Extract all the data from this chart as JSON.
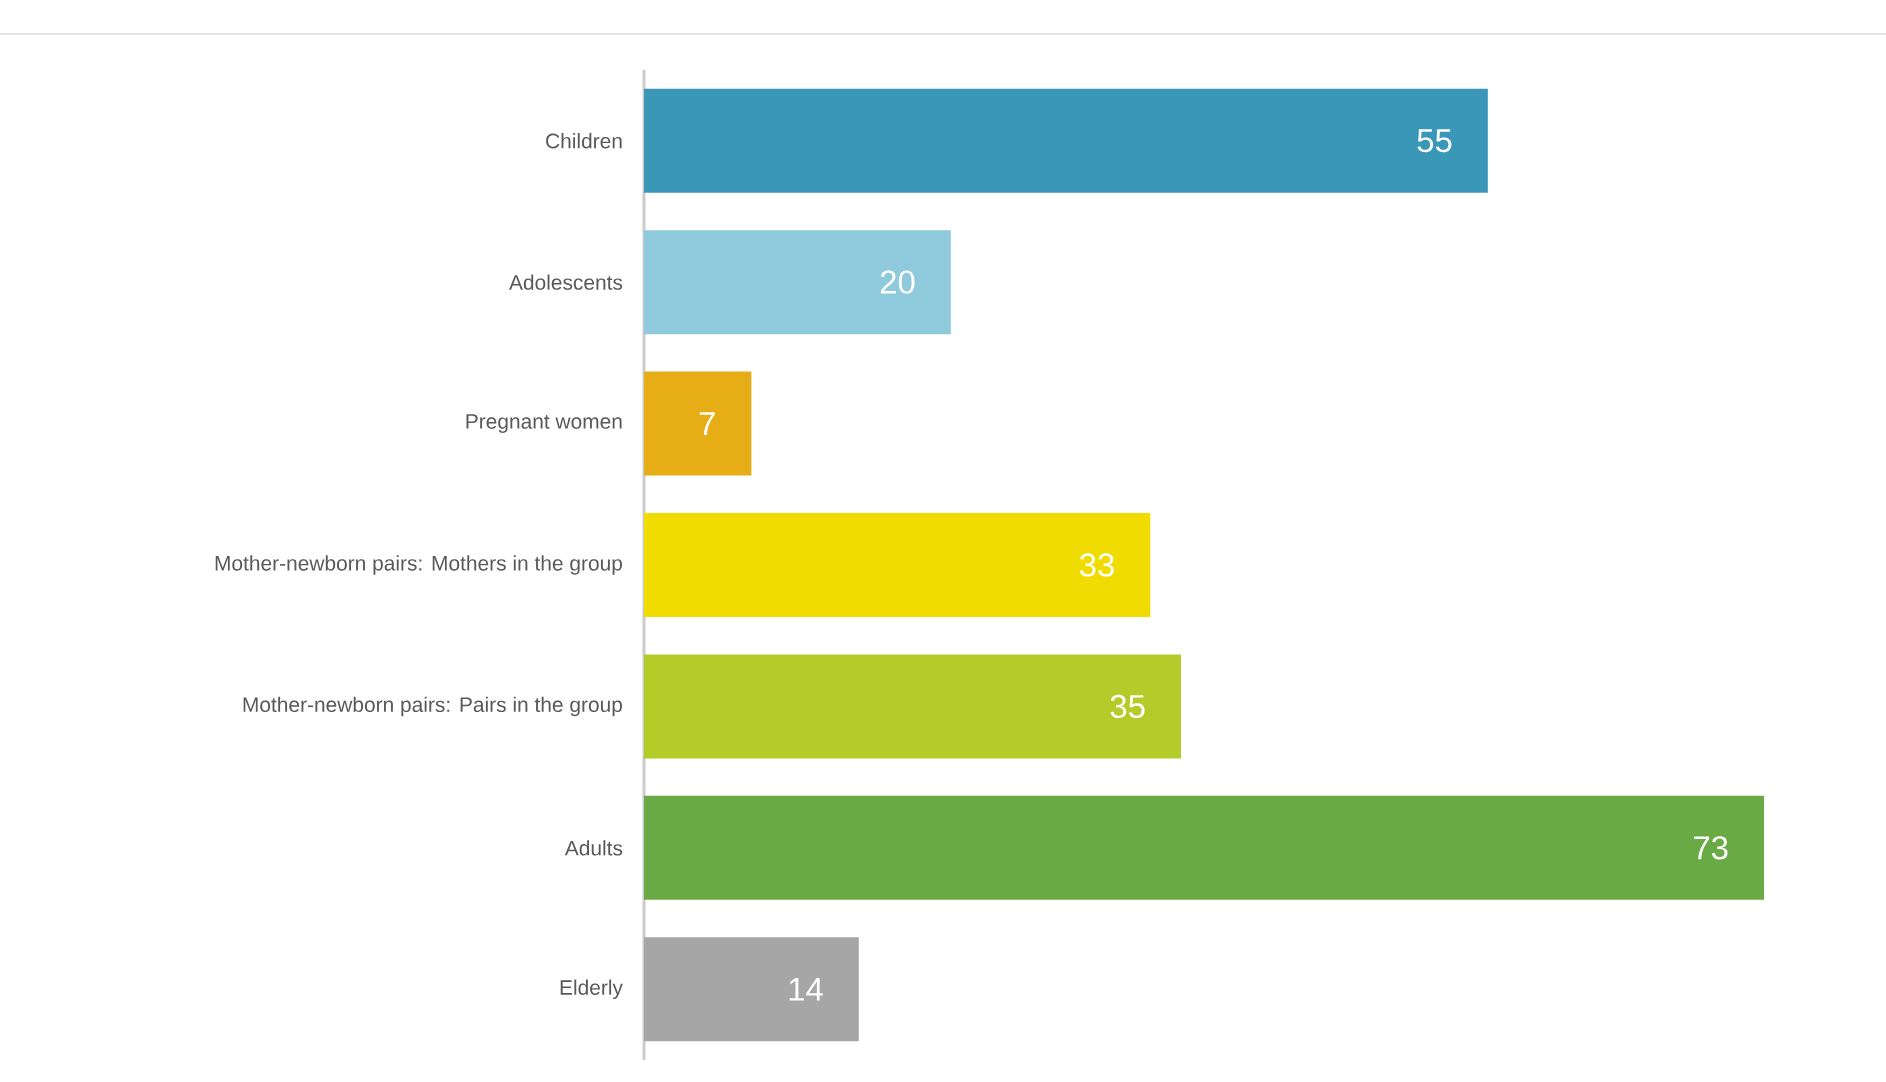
{
  "chart_data": {
    "type": "bar",
    "orientation": "horizontal",
    "categories": [
      "Children",
      "Adolescents",
      "Pregnant women",
      "Mother-newborn pairs: Mothers in the group",
      "Mother-newborn pairs: Pairs in the group",
      "Adults",
      "Elderly"
    ],
    "values": [
      55,
      20,
      7,
      33,
      35,
      73,
      14
    ],
    "colors": [
      "#3a97b8",
      "#8ecadb",
      "#e6ad17",
      "#f0dc00",
      "#b3cc2a",
      "#6aaa45",
      "#a6a6a6"
    ],
    "data_labels": true
  }
}
